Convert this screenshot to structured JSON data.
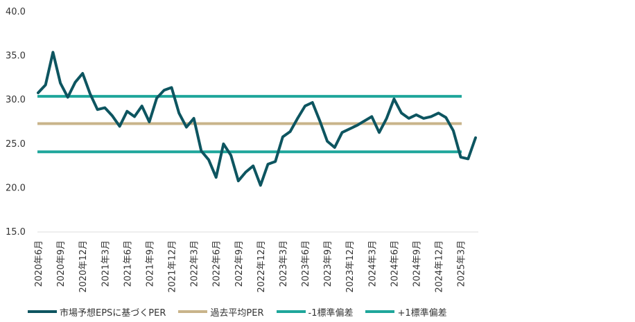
{
  "chart_data": {
    "type": "line",
    "title": "",
    "xlabel": "",
    "ylabel": "",
    "ylim": [
      15,
      40
    ],
    "yticks": [
      "40.0",
      "35.0",
      "30.0",
      "25.0",
      "20.0",
      "15.0"
    ],
    "x_tick_labels": [
      "2020年6月",
      "2020年9月",
      "2020年12月",
      "2021年3月",
      "2021年6月",
      "2021年9月",
      "2021年12月",
      "2022年3月",
      "2022年6月",
      "2022年9月",
      "2022年12月",
      "2023年3月",
      "2023年6月",
      "2023年9月",
      "2023年12月",
      "2024年3月",
      "2024年6月",
      "2024年9月",
      "2024年12月",
      "2025年3月"
    ],
    "series": [
      {
        "name": "市場予想EPSに基づくPER",
        "color": "#0d5560",
        "values": [
          30.8,
          31.7,
          35.4,
          31.9,
          30.3,
          32.0,
          33.0,
          30.7,
          28.9,
          29.1,
          28.2,
          27.0,
          28.7,
          28.1,
          29.3,
          27.5,
          30.2,
          31.1,
          31.4,
          28.5,
          26.9,
          27.9,
          24.2,
          23.2,
          21.2,
          25.0,
          23.7,
          20.8,
          21.8,
          22.5,
          20.3,
          22.7,
          23.0,
          25.8,
          26.4,
          27.9,
          29.3,
          29.7,
          27.6,
          25.3,
          24.6,
          26.3,
          26.7,
          27.1,
          27.6,
          28.1,
          26.3,
          27.9,
          30.1,
          28.5,
          27.9,
          28.3,
          27.9,
          28.1,
          28.5,
          28.0,
          26.5,
          23.5,
          23.3,
          25.7
        ]
      },
      {
        "name": "過去平均PER",
        "color": "#c9b48a",
        "value": 27.3
      },
      {
        "name": "-1標準偏差",
        "color": "#1fa69b",
        "value": 24.1
      },
      {
        "name": "+1標準偏差",
        "color": "#1fa69b",
        "value": 30.4
      }
    ],
    "grid": false,
    "legend_position": "bottom-left"
  }
}
